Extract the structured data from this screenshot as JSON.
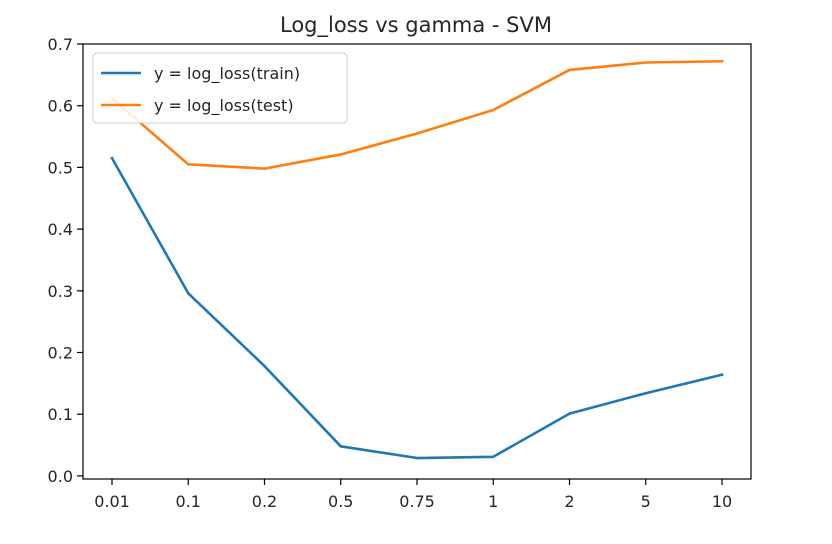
{
  "chart_data": {
    "type": "line",
    "title": "Log_loss vs gamma - SVM",
    "xlabel": "",
    "ylabel": "",
    "categories": [
      "0.01",
      "0.1",
      "0.2",
      "0.5",
      "0.75",
      "1",
      "2",
      "5",
      "10"
    ],
    "ylim": [
      -0.005,
      0.7
    ],
    "yticks": [
      0.0,
      0.1,
      0.2,
      0.3,
      0.4,
      0.5,
      0.6,
      0.7
    ],
    "ytick_labels": [
      "0.0",
      "0.1",
      "0.2",
      "0.3",
      "0.4",
      "0.5",
      "0.6",
      "0.7"
    ],
    "grid": false,
    "legend_position": "top-left",
    "series": [
      {
        "name": "y = log_loss(train)",
        "color": "#1f77b4",
        "values": [
          0.515,
          0.296,
          0.178,
          0.048,
          0.029,
          0.031,
          0.101,
          0.134,
          0.164
        ]
      },
      {
        "name": "y = log_loss(test)",
        "color": "#ff7f0e",
        "values": [
          0.612,
          0.505,
          0.498,
          0.521,
          0.555,
          0.593,
          0.658,
          0.67,
          0.672
        ]
      }
    ]
  }
}
